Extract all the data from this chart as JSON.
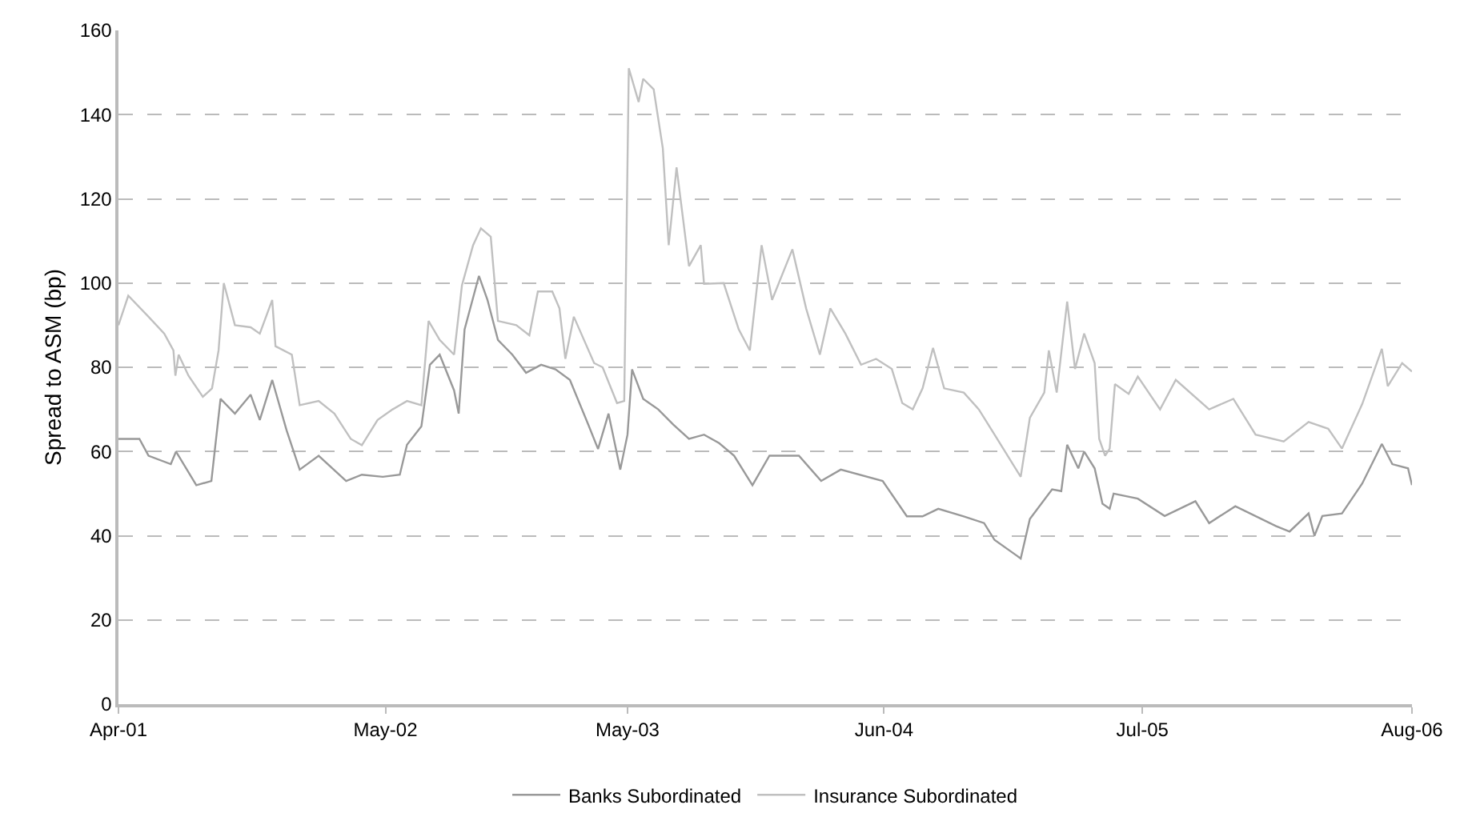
{
  "chart_data": {
    "type": "line",
    "ylabel": "Spread to ASM (bp)",
    "xlim": [
      "2001-04-02",
      "2006-08-31"
    ],
    "xticks": [
      {
        "value": "2001-04-02",
        "label": "Apr-01"
      },
      {
        "value": "2002-05-15",
        "label": "May-02"
      },
      {
        "value": "2003-05-20",
        "label": "May-03"
      },
      {
        "value": "2004-06-15",
        "label": "Jun-04"
      },
      {
        "value": "2005-07-15",
        "label": "Jul-05"
      },
      {
        "value": "2006-08-31",
        "label": "Aug-06"
      }
    ],
    "ylim": [
      0,
      160
    ],
    "yticks": [
      0,
      20,
      40,
      60,
      80,
      100,
      120,
      140,
      160
    ],
    "grid": "y",
    "legend": "bottom",
    "marker": "none",
    "line_style": "solid",
    "series": [
      {
        "name": "Banks Subordinated",
        "color": "#999999",
        "x": [
          "2001-04-02",
          "2001-05-04",
          "2001-05-18",
          "2001-06-21",
          "2001-06-29",
          "2001-07-30",
          "2001-08-22",
          "2001-09-05",
          "2001-09-27",
          "2001-10-21",
          "2001-11-04",
          "2001-11-23",
          "2001-12-15",
          "2002-01-04",
          "2002-02-02",
          "2002-03-16",
          "2002-04-09",
          "2002-05-11",
          "2002-06-06",
          "2002-06-17",
          "2002-07-09",
          "2002-07-22",
          "2002-08-06",
          "2002-08-28",
          "2002-09-04",
          "2002-09-13",
          "2002-10-05",
          "2002-10-18",
          "2002-11-03",
          "2002-11-25",
          "2002-12-16",
          "2003-01-08",
          "2003-01-30",
          "2003-02-21",
          "2003-03-21",
          "2003-04-05",
          "2003-04-21",
          "2003-05-09",
          "2003-05-20",
          "2003-05-27",
          "2003-06-13",
          "2003-07-06",
          "2003-07-29",
          "2003-08-22",
          "2003-09-14",
          "2003-10-07",
          "2003-10-30",
          "2003-11-27",
          "2003-12-23",
          "2004-02-06",
          "2004-03-11",
          "2004-04-10",
          "2004-06-13",
          "2004-07-20",
          "2004-08-13",
          "2004-09-06",
          "2004-10-15",
          "2004-11-15",
          "2004-12-01",
          "2005-01-10",
          "2005-01-24",
          "2005-02-27",
          "2005-03-13",
          "2005-03-22",
          "2005-04-08",
          "2005-04-17",
          "2005-05-03",
          "2005-05-15",
          "2005-05-26",
          "2005-06-01",
          "2005-07-08",
          "2005-08-18",
          "2005-10-04",
          "2005-10-25",
          "2005-12-04",
          "2006-02-04",
          "2006-02-25",
          "2006-03-26",
          "2006-04-04",
          "2006-04-16",
          "2006-05-16",
          "2006-06-16",
          "2006-07-16",
          "2006-08-01",
          "2006-08-25",
          "2006-08-31"
        ],
        "values": [
          63,
          63,
          59,
          57,
          60,
          52,
          53,
          72.5,
          69,
          73.5,
          67.5,
          77,
          65,
          55.7,
          59,
          53,
          54.5,
          54,
          54.5,
          61.6,
          66,
          80.6,
          83,
          74.5,
          69,
          89,
          101.7,
          96,
          86.5,
          83,
          78.7,
          80.6,
          79.5,
          77,
          66.4,
          60.6,
          69,
          55.7,
          64,
          79.5,
          72.5,
          70,
          66.4,
          63,
          64,
          62,
          59,
          52,
          59,
          59,
          53,
          55.7,
          53,
          44.6,
          44.6,
          46.4,
          44.6,
          43,
          39,
          34.6,
          44,
          51,
          50.6,
          61.6,
          56,
          60,
          56,
          47.6,
          46.4,
          50,
          48.8,
          44.7,
          48.2,
          43,
          47,
          42.3,
          41,
          45.3,
          40,
          44.7,
          45.3,
          52.4,
          61.8,
          57,
          56,
          52
        ]
      },
      {
        "name": "Insurance Subordinated",
        "color": "#c0c0c0",
        "x": [
          "2001-04-02",
          "2001-04-17",
          "2001-05-18",
          "2001-06-11",
          "2001-06-25",
          "2001-06-28",
          "2001-07-03",
          "2001-07-18",
          "2001-08-09",
          "2001-08-23",
          "2001-09-02",
          "2001-09-10",
          "2001-09-27",
          "2001-10-21",
          "2001-11-04",
          "2001-11-23",
          "2001-11-28",
          "2001-12-23",
          "2002-01-04",
          "2002-02-02",
          "2002-02-26",
          "2002-03-23",
          "2002-04-09",
          "2002-05-03",
          "2002-05-26",
          "2002-06-17",
          "2002-07-09",
          "2002-07-20",
          "2002-08-06",
          "2002-08-28",
          "2002-09-09",
          "2002-09-26",
          "2002-10-08",
          "2002-10-23",
          "2002-11-03",
          "2002-12-01",
          "2002-12-21",
          "2003-01-03",
          "2003-01-25",
          "2003-02-05",
          "2003-02-14",
          "2003-02-27",
          "2003-03-30",
          "2003-04-12",
          "2003-05-04",
          "2003-05-15",
          "2003-05-22",
          "2003-06-06",
          "2003-06-13",
          "2003-06-29",
          "2003-07-13",
          "2003-07-22",
          "2003-08-03",
          "2003-08-22",
          "2003-09-09",
          "2003-09-14",
          "2003-10-14",
          "2003-11-06",
          "2003-11-23",
          "2003-12-11",
          "2003-12-27",
          "2004-01-27",
          "2004-02-17",
          "2004-03-09",
          "2004-03-25",
          "2004-04-17",
          "2004-05-11",
          "2004-06-03",
          "2004-06-27",
          "2004-07-13",
          "2004-07-29",
          "2004-08-13",
          "2004-08-29",
          "2004-09-15",
          "2004-10-15",
          "2004-11-07",
          "2004-12-01",
          "2005-01-10",
          "2005-01-24",
          "2005-02-15",
          "2005-02-22",
          "2005-03-06",
          "2005-03-22",
          "2005-04-03",
          "2005-04-17",
          "2005-05-03",
          "2005-05-10",
          "2005-05-19",
          "2005-05-26",
          "2005-06-03",
          "2005-06-24",
          "2005-07-08",
          "2005-08-11",
          "2005-09-04",
          "2005-10-25",
          "2005-12-01",
          "2006-01-04",
          "2006-02-16",
          "2006-03-26",
          "2006-04-25",
          "2006-05-16",
          "2006-06-16",
          "2006-07-16",
          "2006-07-25",
          "2006-08-16",
          "2006-08-31"
        ],
        "values": [
          90,
          97,
          92,
          88,
          84,
          78,
          83,
          78,
          73,
          75,
          84,
          100,
          90,
          89.5,
          88,
          96,
          85,
          83,
          71,
          72,
          69,
          63,
          61.5,
          67.5,
          70,
          72,
          71,
          91,
          86.5,
          83,
          99.5,
          109,
          113,
          111,
          91,
          90,
          87.6,
          98,
          98,
          94,
          82,
          92,
          81,
          80,
          71.5,
          72,
          151,
          143,
          148.5,
          146,
          132,
          109,
          127.5,
          104,
          109,
          99.8,
          100,
          89,
          84,
          109,
          96,
          108,
          94,
          83,
          94,
          88,
          80.6,
          82,
          79.6,
          71.5,
          70,
          75,
          84.6,
          75,
          74,
          70,
          64,
          54,
          68,
          74,
          84,
          74,
          95.6,
          79.6,
          88,
          81,
          63,
          59,
          60.7,
          76,
          73.7,
          77.8,
          70,
          77,
          70,
          72.5,
          64,
          62.4,
          67,
          65.4,
          60.7,
          71.3,
          84.4,
          75.5,
          81,
          79
        ]
      }
    ]
  }
}
